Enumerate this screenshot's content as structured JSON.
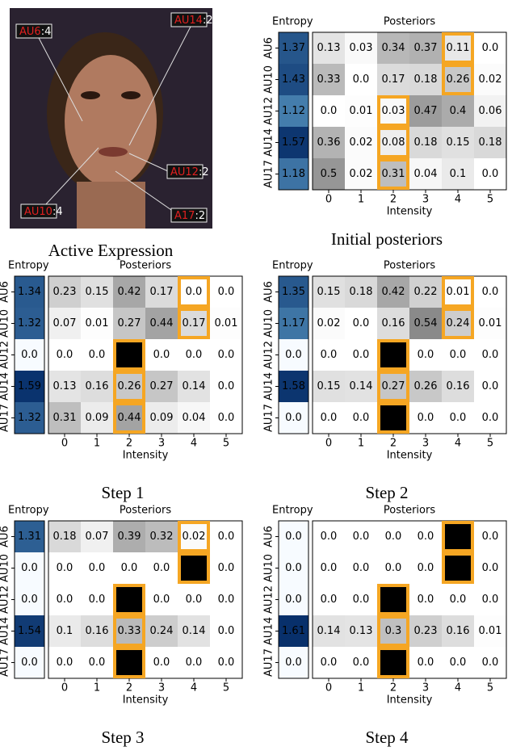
{
  "photo": {
    "caption": "Active Expression",
    "labels": [
      {
        "name": "AU6",
        "value": ":4"
      },
      {
        "name": "AU14",
        "value": ":2"
      },
      {
        "name": "AU12",
        "value": ":2"
      },
      {
        "name": "AU10",
        "value": ":4"
      },
      {
        "name": "A17",
        "value": ":2"
      }
    ]
  },
  "chart_data": [
    {
      "type": "heatmap",
      "caption": "Initial posteriors",
      "entropy_title": "Entropy",
      "title": "Posteriors",
      "xlabel": "Intensity",
      "rows": [
        "AU6",
        "AU10",
        "AU12",
        "AU14",
        "AU17"
      ],
      "xticks": [
        0,
        1,
        2,
        3,
        4,
        5
      ],
      "entropy_cmap": "Blues",
      "entropy_clim": [
        0,
        1.61
      ],
      "cmap": "Greys",
      "clim": [
        0,
        1
      ],
      "highlight_color": "#f5a623",
      "entropy": {
        "values": [
          1.37,
          1.43,
          1.12,
          1.57,
          1.18
        ],
        "value_labels": [
          "1.37",
          "1.43",
          "1.12",
          "1.57",
          "1.18"
        ]
      },
      "values": [
        [
          0.13,
          0.03,
          0.34,
          0.37,
          0.11,
          0.0
        ],
        [
          0.33,
          0.0,
          0.17,
          0.18,
          0.26,
          0.02
        ],
        [
          0.0,
          0.01,
          0.03,
          0.47,
          0.4,
          0.06
        ],
        [
          0.36,
          0.02,
          0.08,
          0.18,
          0.15,
          0.18
        ],
        [
          0.5,
          0.02,
          0.31,
          0.04,
          0.1,
          0.0
        ]
      ],
      "value_labels": [
        [
          "0.13",
          "0.03",
          "0.34",
          "0.37",
          "0.11",
          "0.0"
        ],
        [
          "0.33",
          "0.0",
          "0.17",
          "0.18",
          "0.26",
          "0.02"
        ],
        [
          "0.0",
          "0.01",
          "0.03",
          "0.47",
          "0.4",
          "0.06"
        ],
        [
          "0.36",
          "0.02",
          "0.08",
          "0.18",
          "0.15",
          "0.18"
        ],
        [
          "0.5",
          "0.02",
          "0.31",
          "0.04",
          "0.1",
          "0.0"
        ]
      ],
      "highlight": [
        [
          0,
          4
        ],
        [
          1,
          4
        ],
        [
          2,
          2
        ],
        [
          3,
          2
        ],
        [
          4,
          2
        ]
      ]
    },
    {
      "type": "heatmap",
      "caption": "Step 1",
      "entropy_title": "Entropy",
      "title": "Posteriors",
      "xlabel": "Intensity",
      "rows": [
        "AU6",
        "AU10",
        "AU12",
        "AU14",
        "AU17"
      ],
      "xticks": [
        0,
        1,
        2,
        3,
        4,
        5
      ],
      "entropy_cmap": "Blues",
      "entropy_clim": [
        0,
        1.61
      ],
      "cmap": "Greys",
      "clim": [
        0,
        1
      ],
      "highlight_color": "#f5a623",
      "entropy": {
        "values": [
          1.34,
          1.32,
          0.0,
          1.59,
          1.32
        ],
        "value_labels": [
          "1.34",
          "1.32",
          "0.0",
          "1.59",
          "1.32"
        ]
      },
      "values": [
        [
          0.23,
          0.15,
          0.42,
          0.17,
          0.0,
          0.0
        ],
        [
          0.07,
          0.01,
          0.27,
          0.44,
          0.17,
          0.01
        ],
        [
          0.0,
          0.0,
          1.0,
          0.0,
          0.0,
          0.0
        ],
        [
          0.13,
          0.16,
          0.26,
          0.27,
          0.14,
          0.0
        ],
        [
          0.31,
          0.09,
          0.44,
          0.09,
          0.04,
          0.0
        ]
      ],
      "value_labels": [
        [
          "0.23",
          "0.15",
          "0.42",
          "0.17",
          "0.0",
          "0.0"
        ],
        [
          "0.07",
          "0.01",
          "0.27",
          "0.44",
          "0.17",
          "0.01"
        ],
        [
          "0.0",
          "0.0",
          "1.0",
          "0.0",
          "0.0",
          "0.0"
        ],
        [
          "0.13",
          "0.16",
          "0.26",
          "0.27",
          "0.14",
          "0.0"
        ],
        [
          "0.31",
          "0.09",
          "0.44",
          "0.09",
          "0.04",
          "0.0"
        ]
      ],
      "highlight": [
        [
          0,
          4
        ],
        [
          1,
          4
        ],
        [
          2,
          2
        ],
        [
          3,
          2
        ],
        [
          4,
          2
        ]
      ]
    },
    {
      "type": "heatmap",
      "caption": "Step 2",
      "entropy_title": "Entropy",
      "title": "Posteriors",
      "xlabel": "Intensity",
      "rows": [
        "AU6",
        "AU10",
        "AU12",
        "AU14",
        "AU17"
      ],
      "xticks": [
        0,
        1,
        2,
        3,
        4,
        5
      ],
      "entropy_cmap": "Blues",
      "entropy_clim": [
        0,
        1.61
      ],
      "cmap": "Greys",
      "clim": [
        0,
        1
      ],
      "highlight_color": "#f5a623",
      "entropy": {
        "values": [
          1.35,
          1.17,
          0.0,
          1.58,
          0.0
        ],
        "value_labels": [
          "1.35",
          "1.17",
          "0.0",
          "1.58",
          "0.0"
        ]
      },
      "values": [
        [
          0.15,
          0.18,
          0.42,
          0.22,
          0.01,
          0.0
        ],
        [
          0.02,
          0.0,
          0.16,
          0.54,
          0.24,
          0.01
        ],
        [
          0.0,
          0.0,
          1.0,
          0.0,
          0.0,
          0.0
        ],
        [
          0.15,
          0.14,
          0.27,
          0.26,
          0.16,
          0.0
        ],
        [
          0.0,
          0.0,
          1.0,
          0.0,
          0.0,
          0.0
        ]
      ],
      "value_labels": [
        [
          "0.15",
          "0.18",
          "0.42",
          "0.22",
          "0.01",
          "0.0"
        ],
        [
          "0.02",
          "0.0",
          "0.16",
          "0.54",
          "0.24",
          "0.01"
        ],
        [
          "0.0",
          "0.0",
          "1.0",
          "0.0",
          "0.0",
          "0.0"
        ],
        [
          "0.15",
          "0.14",
          "0.27",
          "0.26",
          "0.16",
          "0.0"
        ],
        [
          "0.0",
          "0.0",
          "1.0",
          "0.0",
          "0.0",
          "0.0"
        ]
      ],
      "highlight": [
        [
          0,
          4
        ],
        [
          1,
          4
        ],
        [
          2,
          2
        ],
        [
          3,
          2
        ],
        [
          4,
          2
        ]
      ]
    },
    {
      "type": "heatmap",
      "caption": "Step 3",
      "entropy_title": "Entropy",
      "title": "Posteriors",
      "xlabel": "Intensity",
      "rows": [
        "AU6",
        "AU10",
        "AU12",
        "AU14",
        "AU17"
      ],
      "xticks": [
        0,
        1,
        2,
        3,
        4,
        5
      ],
      "entropy_cmap": "Blues",
      "entropy_clim": [
        0,
        1.61
      ],
      "cmap": "Greys",
      "clim": [
        0,
        1
      ],
      "highlight_color": "#f5a623",
      "entropy": {
        "values": [
          1.31,
          0.0,
          0.0,
          1.54,
          0.0
        ],
        "value_labels": [
          "1.31",
          "0.0",
          "0.0",
          "1.54",
          "0.0"
        ]
      },
      "values": [
        [
          0.18,
          0.07,
          0.39,
          0.32,
          0.02,
          0.0
        ],
        [
          0.0,
          0.0,
          0.0,
          0.0,
          1.0,
          0.0
        ],
        [
          0.0,
          0.0,
          1.0,
          0.0,
          0.0,
          0.0
        ],
        [
          0.1,
          0.16,
          0.33,
          0.24,
          0.14,
          0.0
        ],
        [
          0.0,
          0.0,
          1.0,
          0.0,
          0.0,
          0.0
        ]
      ],
      "value_labels": [
        [
          "0.18",
          "0.07",
          "0.39",
          "0.32",
          "0.02",
          "0.0"
        ],
        [
          "0.0",
          "0.0",
          "0.0",
          "0.0",
          "1.0",
          "0.0"
        ],
        [
          "0.0",
          "0.0",
          "1.0",
          "0.0",
          "0.0",
          "0.0"
        ],
        [
          "0.1",
          "0.16",
          "0.33",
          "0.24",
          "0.14",
          "0.0"
        ],
        [
          "0.0",
          "0.0",
          "1.0",
          "0.0",
          "0.0",
          "0.0"
        ]
      ],
      "highlight": [
        [
          0,
          4
        ],
        [
          1,
          4
        ],
        [
          2,
          2
        ],
        [
          3,
          2
        ],
        [
          4,
          2
        ]
      ]
    },
    {
      "type": "heatmap",
      "caption": "Step 4",
      "entropy_title": "Entropy",
      "title": "Posteriors",
      "xlabel": "Intensity",
      "rows": [
        "AU6",
        "AU10",
        "AU12",
        "AU14",
        "AU17"
      ],
      "xticks": [
        0,
        1,
        2,
        3,
        4,
        5
      ],
      "entropy_cmap": "Blues",
      "entropy_clim": [
        0,
        1.61
      ],
      "cmap": "Greys",
      "clim": [
        0,
        1
      ],
      "highlight_color": "#f5a623",
      "entropy": {
        "values": [
          0.0,
          0.0,
          0.0,
          1.61,
          0.0
        ],
        "value_labels": [
          "0.0",
          "0.0",
          "0.0",
          "1.61",
          "0.0"
        ]
      },
      "values": [
        [
          0.0,
          0.0,
          0.0,
          0.0,
          1.0,
          0.0
        ],
        [
          0.0,
          0.0,
          0.0,
          0.0,
          1.0,
          0.0
        ],
        [
          0.0,
          0.0,
          1.0,
          0.0,
          0.0,
          0.0
        ],
        [
          0.14,
          0.13,
          0.3,
          0.23,
          0.16,
          0.01
        ],
        [
          0.0,
          0.0,
          1.0,
          0.0,
          0.0,
          0.0
        ]
      ],
      "value_labels": [
        [
          "0.0",
          "0.0",
          "0.0",
          "0.0",
          "1.0",
          "0.0"
        ],
        [
          "0.0",
          "0.0",
          "0.0",
          "0.0",
          "1.0",
          "0.0"
        ],
        [
          "0.0",
          "0.0",
          "1.0",
          "0.0",
          "0.0",
          "0.0"
        ],
        [
          "0.14",
          "0.13",
          "0.3",
          "0.23",
          "0.16",
          "0.01"
        ],
        [
          "0.0",
          "0.0",
          "1.0",
          "0.0",
          "0.0",
          "0.0"
        ]
      ],
      "highlight": [
        [
          0,
          4
        ],
        [
          1,
          4
        ],
        [
          2,
          2
        ],
        [
          3,
          2
        ],
        [
          4,
          2
        ]
      ]
    }
  ]
}
